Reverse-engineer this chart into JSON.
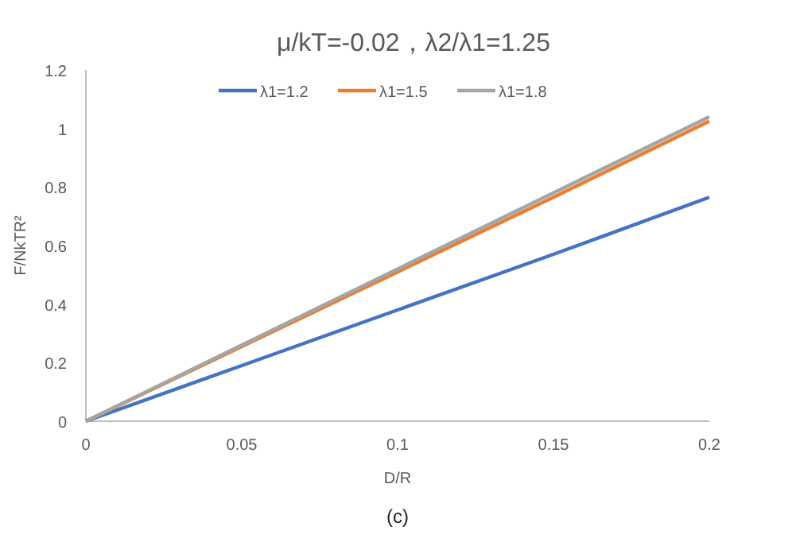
{
  "chart_data": {
    "type": "line",
    "title": "μ/kT=-0.02，λ2/λ1=1.25",
    "xlabel": "D/R",
    "ylabel": "F/NkTR²",
    "annotations": [
      "(c)"
    ],
    "x": [
      0,
      0.05,
      0.1,
      0.15,
      0.2
    ],
    "series": [
      {
        "name": "λ1=1.2",
        "color": "#4472c4",
        "values": [
          0,
          0.19,
          0.38,
          0.57,
          0.765
        ]
      },
      {
        "name": "λ1=1.5",
        "color": "#ed7d31",
        "values": [
          0,
          0.255,
          0.51,
          0.765,
          1.025
        ]
      },
      {
        "name": "λ1=1.8",
        "color": "#a5a5a5",
        "values": [
          0,
          0.26,
          0.52,
          0.78,
          1.04
        ]
      }
    ],
    "xlim": [
      0,
      0.2
    ],
    "xticks": [
      0,
      0.05,
      0.1,
      0.15,
      0.2
    ],
    "ylim": [
      0,
      1.2
    ],
    "yticks": [
      0,
      0.2,
      0.4,
      0.6,
      0.8,
      1,
      1.2
    ],
    "grid": false,
    "legend": "top",
    "marker": "none",
    "line_style": "solid"
  }
}
